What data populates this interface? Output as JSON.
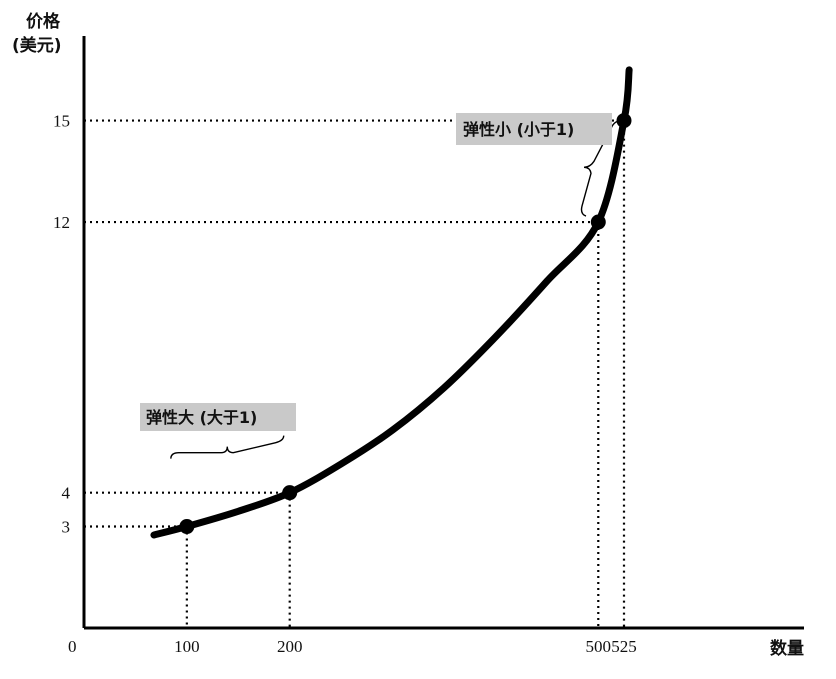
{
  "chart_data": {
    "type": "line",
    "ylabel_line1": "价格",
    "ylabel_line2": "(美元)",
    "xlabel": "数量",
    "origin_label": "0",
    "x_ticks": [
      100,
      200,
      500,
      525
    ],
    "y_ticks": [
      3,
      4,
      12,
      15
    ],
    "xlim": [
      0,
      700
    ],
    "ylim": [
      0,
      17.5
    ],
    "curve": {
      "x": [
        68,
        100,
        150,
        200,
        250,
        300,
        350,
        400,
        450,
        500,
        525,
        530
      ],
      "y": [
        2.75,
        3,
        3.45,
        4,
        4.85,
        5.85,
        7.1,
        8.6,
        10.25,
        12,
        15,
        16.5
      ]
    },
    "points": [
      {
        "x": 100,
        "y": 3
      },
      {
        "x": 200,
        "y": 4
      },
      {
        "x": 500,
        "y": 12
      },
      {
        "x": 525,
        "y": 15
      }
    ],
    "annotations": [
      {
        "text": "弹性大 (大于1)",
        "from": [
          100,
          3
        ],
        "to": [
          200,
          4
        ]
      },
      {
        "text": "弹性小 (小于1)",
        "from": [
          500,
          12
        ],
        "to": [
          525,
          15
        ]
      }
    ],
    "colors": {
      "curve": "#000000",
      "label_bg": "#c9c9c9"
    }
  }
}
